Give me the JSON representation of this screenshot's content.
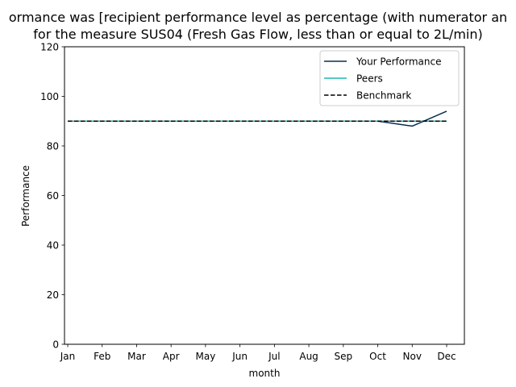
{
  "chart_data": {
    "type": "line",
    "title_line1": "ormance was [recipient performance level as percentage (with numerator an",
    "title_line2": "for the measure SUS04 (Fresh Gas Flow, less than or equal to 2L/min)",
    "xlabel": "month",
    "ylabel": "Performance",
    "categories": [
      "Jan",
      "Feb",
      "Mar",
      "Apr",
      "May",
      "Jun",
      "Jul",
      "Aug",
      "Sep",
      "Oct",
      "Nov",
      "Dec"
    ],
    "ylim": [
      0,
      120
    ],
    "yticks": [
      0,
      20,
      40,
      60,
      80,
      100,
      120
    ],
    "grid": false,
    "legend_position": "top-right",
    "series": [
      {
        "name": "Your Performance",
        "color": "#0b2d4f",
        "style": "solid",
        "values": [
          90,
          90,
          90,
          90,
          90,
          90,
          90,
          90,
          90,
          90,
          88,
          94
        ]
      },
      {
        "name": "Peers",
        "color": "#1fb8b0",
        "style": "solid",
        "values": [
          90,
          90,
          90,
          90,
          90,
          90,
          90,
          90,
          90,
          90,
          90,
          90
        ]
      },
      {
        "name": "Benchmark",
        "color": "#000000",
        "style": "dashed",
        "values": [
          90,
          90,
          90,
          90,
          90,
          90,
          90,
          90,
          90,
          90,
          90,
          90
        ]
      }
    ]
  }
}
